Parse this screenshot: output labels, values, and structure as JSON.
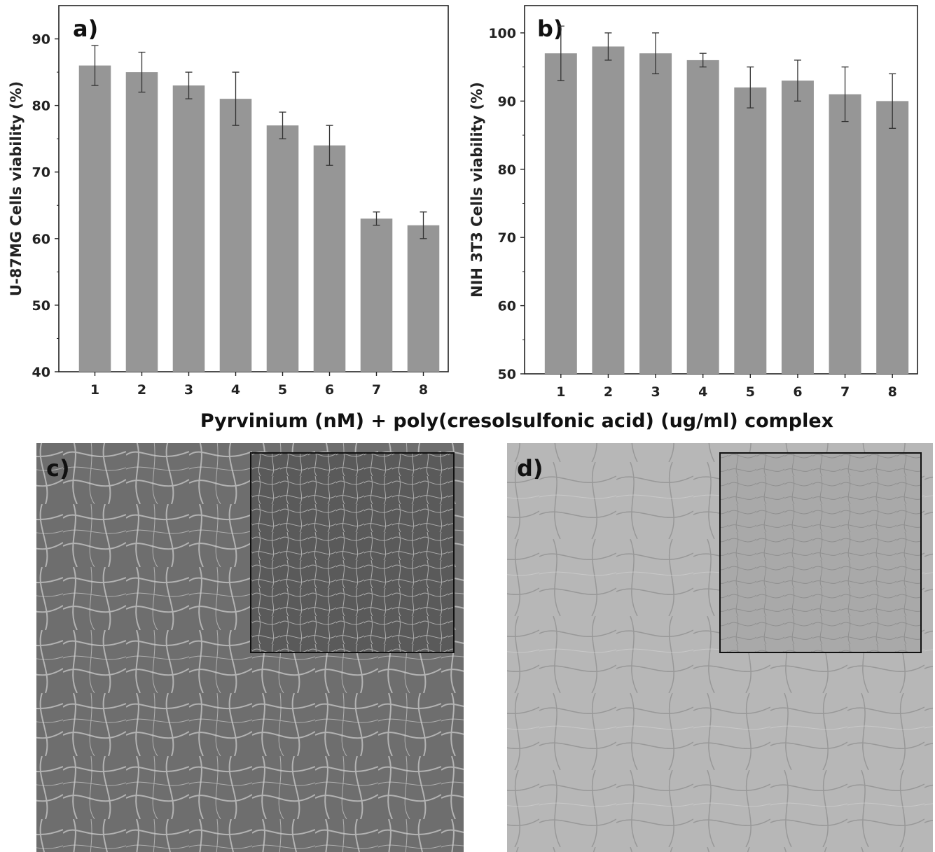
{
  "shared_xlabel": "Pyrvinium (nM) + poly(cresolsulfonic acid) (ug/ml) complex",
  "colors": {
    "bar": "#969696",
    "axis": "#222222",
    "error_bar": "#333333"
  },
  "chart_data": [
    {
      "type": "bar",
      "panel_label": "a)",
      "categories": [
        "1",
        "2",
        "3",
        "4",
        "5",
        "6",
        "7",
        "8"
      ],
      "values": [
        86,
        85,
        83,
        81,
        77,
        74,
        63,
        62
      ],
      "errors": [
        3,
        3,
        2,
        4,
        2,
        3,
        1,
        2
      ],
      "ylabel": "U-87MG Cells viability (%)",
      "ylim": [
        40,
        95
      ],
      "yticks": [
        40,
        50,
        60,
        70,
        80,
        90
      ],
      "grid": false
    },
    {
      "type": "bar",
      "panel_label": "b)",
      "categories": [
        "1",
        "2",
        "3",
        "4",
        "5",
        "6",
        "7",
        "8"
      ],
      "values": [
        97,
        98,
        97,
        96,
        92,
        93,
        91,
        90
      ],
      "errors": [
        4,
        2,
        3,
        1,
        3,
        3,
        4,
        4
      ],
      "ylabel": "NIH 3T3 Cells viability (%)",
      "ylim": [
        50,
        104
      ],
      "yticks": [
        50,
        60,
        70,
        80,
        90,
        100
      ],
      "grid": false
    }
  ],
  "micrographs": [
    {
      "panel_label": "c)",
      "tone": "dark"
    },
    {
      "panel_label": "d)",
      "tone": "light"
    }
  ]
}
